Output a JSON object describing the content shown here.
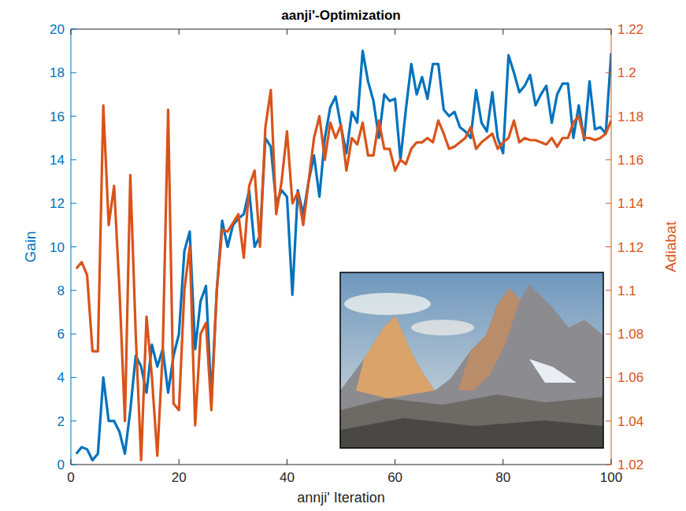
{
  "chart_data": {
    "type": "line",
    "title": "aanji'-Optimization",
    "x_label": "annji' Iteration",
    "x": [
      1,
      2,
      3,
      4,
      5,
      6,
      7,
      8,
      9,
      10,
      11,
      12,
      13,
      14,
      15,
      16,
      17,
      18,
      19,
      20,
      21,
      22,
      23,
      24,
      25,
      26,
      27,
      28,
      29,
      30,
      31,
      32,
      33,
      34,
      35,
      36,
      37,
      38,
      39,
      40,
      41,
      42,
      43,
      44,
      45,
      46,
      47,
      48,
      49,
      50,
      51,
      52,
      53,
      54,
      55,
      56,
      57,
      58,
      59,
      60,
      61,
      62,
      63,
      64,
      65,
      66,
      67,
      68,
      69,
      70,
      71,
      72,
      73,
      74,
      75,
      76,
      77,
      78,
      79,
      80,
      81,
      82,
      83,
      84,
      85,
      86,
      87,
      88,
      89,
      90,
      91,
      92,
      93,
      94,
      95,
      96,
      97,
      98,
      99,
      100
    ],
    "xlim": [
      0,
      100
    ],
    "xticks": [
      0,
      20,
      40,
      60,
      80,
      100
    ],
    "ylim": [
      0,
      20
    ],
    "yticks": [
      0,
      2,
      4,
      6,
      8,
      10,
      12,
      14,
      16,
      18,
      20
    ],
    "y2lim": [
      1.02,
      1.22
    ],
    "y2ticks": [
      1.02,
      1.04,
      1.06,
      1.08,
      1.1,
      1.12,
      1.14,
      1.16,
      1.18,
      1.2,
      1.22
    ],
    "grid": false,
    "series": [
      {
        "name": "Gain",
        "color": "#0072bd",
        "values": [
          0.5,
          0.8,
          0.7,
          0.2,
          0.5,
          4.0,
          2.0,
          2.0,
          1.5,
          0.5,
          2.5,
          5.0,
          4.5,
          3.3,
          5.5,
          4.5,
          5.3,
          3.3,
          5.0,
          6.0,
          9.8,
          10.7,
          5.3,
          7.5,
          8.2,
          3.0,
          8.0,
          11.2,
          10.0,
          11.0,
          11.3,
          11.5,
          12.6,
          10.0,
          10.5,
          15.0,
          14.6,
          12.0,
          12.6,
          12.3,
          7.8,
          12.6,
          11.5,
          13.0,
          14.2,
          12.3,
          15.0,
          16.4,
          16.9,
          15.5,
          14.3,
          16.2,
          15.7,
          19.0,
          17.6,
          16.7,
          15.0,
          17.0,
          16.7,
          16.8,
          14.0,
          16.3,
          18.4,
          17.0,
          17.8,
          16.8,
          18.4,
          18.4,
          16.3,
          16.0,
          16.2,
          15.5,
          15.3,
          15.0,
          17.2,
          15.7,
          15.3,
          17.1,
          15.0,
          14.3,
          18.8,
          18.0,
          17.1,
          17.4,
          17.9,
          16.5,
          17.0,
          17.4,
          15.7,
          17.0,
          17.5,
          17.5,
          15.0,
          16.5,
          14.9,
          17.6,
          15.4,
          15.5,
          15.2,
          18.9
        ]
      },
      {
        "name": "Adiabat",
        "color": "#d95319",
        "axis": "y2",
        "values": [
          1.11,
          1.113,
          1.107,
          1.072,
          1.072,
          1.185,
          1.13,
          1.148,
          1.1,
          1.04,
          1.153,
          1.08,
          1.022,
          1.088,
          1.06,
          1.024,
          1.072,
          1.183,
          1.048,
          1.045,
          1.1,
          1.12,
          1.038,
          1.08,
          1.085,
          1.045,
          1.1,
          1.128,
          1.127,
          1.131,
          1.135,
          1.115,
          1.148,
          1.155,
          1.12,
          1.175,
          1.192,
          1.135,
          1.15,
          1.173,
          1.14,
          1.145,
          1.13,
          1.15,
          1.17,
          1.18,
          1.16,
          1.177,
          1.17,
          1.176,
          1.155,
          1.17,
          1.167,
          1.177,
          1.162,
          1.162,
          1.178,
          1.165,
          1.165,
          1.155,
          1.16,
          1.158,
          1.165,
          1.168,
          1.168,
          1.17,
          1.168,
          1.178,
          1.172,
          1.165,
          1.166,
          1.168,
          1.17,
          1.175,
          1.165,
          1.168,
          1.17,
          1.172,
          1.165,
          1.168,
          1.17,
          1.178,
          1.168,
          1.17,
          1.169,
          1.169,
          1.168,
          1.167,
          1.17,
          1.166,
          1.17,
          1.17,
          1.177,
          1.18,
          1.17,
          1.17,
          1.169,
          1.17,
          1.172,
          1.178
        ]
      }
    ]
  }
}
